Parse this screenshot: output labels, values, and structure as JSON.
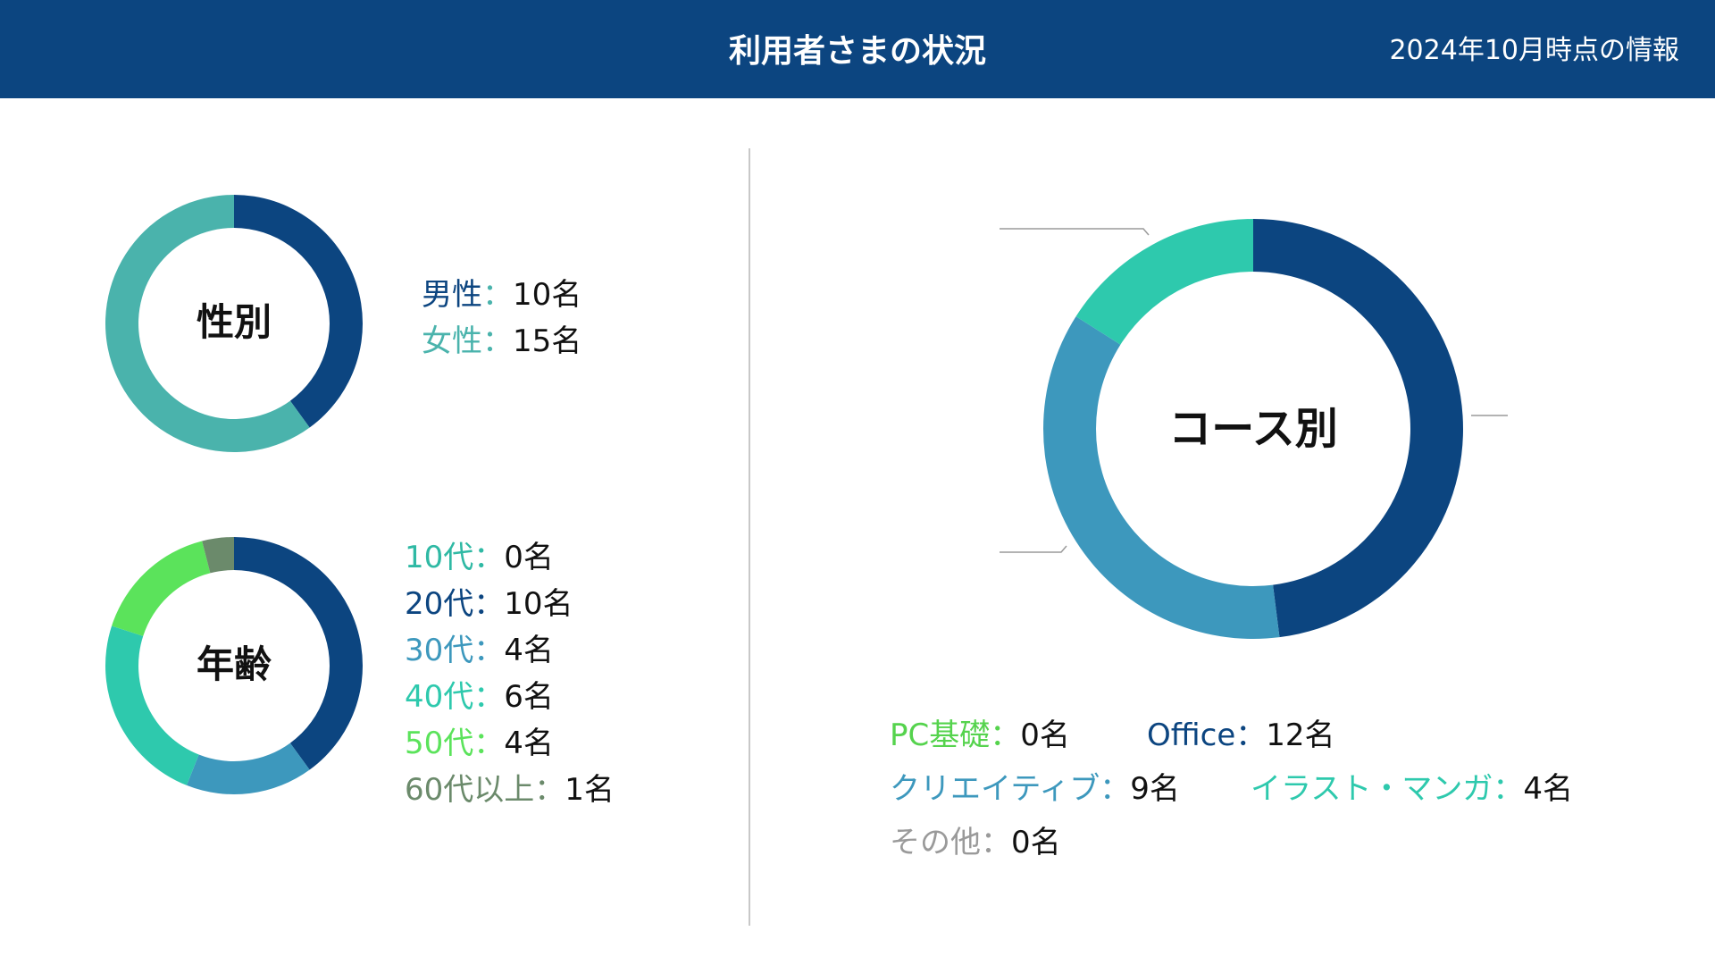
{
  "header": {
    "title": "利用者さまの状況",
    "date_note": "2024年10月時点の情報"
  },
  "gender": {
    "center_label": "性別",
    "items": [
      {
        "label": "男性",
        "sep": "：",
        "value": "10名"
      },
      {
        "label": "女性",
        "sep": "：",
        "value": "15名"
      }
    ]
  },
  "age": {
    "center_label": "年齢",
    "items": [
      {
        "label": "10代",
        "sep": "：",
        "value": "0名"
      },
      {
        "label": "20代",
        "sep": "：",
        "value": "10名"
      },
      {
        "label": "30代",
        "sep": "：",
        "value": "4名"
      },
      {
        "label": "40代",
        "sep": "：",
        "value": "6名"
      },
      {
        "label": "50代",
        "sep": "：",
        "value": "4名"
      },
      {
        "label": "60代以上",
        "sep": "：",
        "value": "1名"
      }
    ]
  },
  "course": {
    "center_label": "コース別",
    "items": [
      {
        "label": "PC基礎",
        "sep": "：",
        "value": "0名"
      },
      {
        "label": "Office",
        "sep": "：",
        "value": "12名"
      },
      {
        "label": "クリエイティブ",
        "sep": "：",
        "value": "9名"
      },
      {
        "label": "イラスト・マンガ",
        "sep": "：",
        "value": "4名"
      },
      {
        "label": "その他",
        "sep": "：",
        "value": "0名"
      }
    ]
  },
  "chart_data": [
    {
      "type": "pie",
      "center_label": "性別",
      "categories": [
        "男性",
        "女性"
      ],
      "values": [
        10,
        15
      ],
      "colors": [
        "#0c4580",
        "#4ab3ac"
      ]
    },
    {
      "type": "pie",
      "center_label": "年齢",
      "categories": [
        "10代",
        "20代",
        "30代",
        "40代",
        "50代",
        "60代以上"
      ],
      "values": [
        0,
        10,
        4,
        6,
        4,
        1
      ],
      "colors": [
        "#2fb9a4",
        "#0c4580",
        "#3d98bd",
        "#2ec9ad",
        "#5be35b",
        "#6b8a6b"
      ]
    },
    {
      "type": "pie",
      "center_label": "コース別",
      "categories": [
        "PC基礎",
        "Office",
        "クリエイティブ",
        "イラスト・マンガ",
        "その他"
      ],
      "values": [
        0,
        12,
        9,
        4,
        0
      ],
      "colors": [
        "#55d34d",
        "#0c4580",
        "#3d98bd",
        "#2ec9ad",
        "#9a9a9a"
      ]
    }
  ]
}
